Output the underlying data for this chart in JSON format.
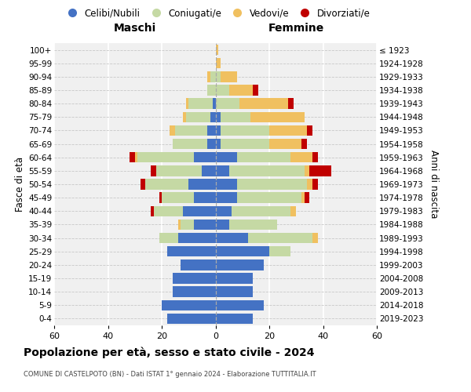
{
  "age_groups": [
    "0-4",
    "5-9",
    "10-14",
    "15-19",
    "20-24",
    "25-29",
    "30-34",
    "35-39",
    "40-44",
    "45-49",
    "50-54",
    "55-59",
    "60-64",
    "65-69",
    "70-74",
    "75-79",
    "80-84",
    "85-89",
    "90-94",
    "95-99",
    "100+"
  ],
  "birth_years": [
    "2019-2023",
    "2014-2018",
    "2009-2013",
    "2004-2008",
    "1999-2003",
    "1994-1998",
    "1989-1993",
    "1984-1988",
    "1979-1983",
    "1974-1978",
    "1969-1973",
    "1964-1968",
    "1959-1963",
    "1954-1958",
    "1949-1953",
    "1944-1948",
    "1939-1943",
    "1934-1938",
    "1929-1933",
    "1924-1928",
    "≤ 1923"
  ],
  "maschi_celibi": [
    18,
    20,
    16,
    16,
    13,
    18,
    14,
    8,
    12,
    8,
    10,
    5,
    8,
    3,
    3,
    2,
    1,
    0,
    0,
    0,
    0
  ],
  "maschi_coniugati": [
    0,
    0,
    0,
    0,
    0,
    0,
    7,
    5,
    11,
    12,
    16,
    17,
    21,
    13,
    12,
    9,
    9,
    3,
    2,
    0,
    0
  ],
  "maschi_vedovi": [
    0,
    0,
    0,
    0,
    0,
    0,
    0,
    1,
    0,
    0,
    0,
    0,
    1,
    0,
    2,
    1,
    1,
    0,
    1,
    0,
    0
  ],
  "maschi_divorziati": [
    0,
    0,
    0,
    0,
    0,
    0,
    0,
    0,
    1,
    1,
    2,
    2,
    2,
    0,
    0,
    0,
    0,
    0,
    0,
    0,
    0
  ],
  "femmine_nubili": [
    14,
    18,
    14,
    14,
    18,
    20,
    12,
    5,
    6,
    8,
    8,
    5,
    8,
    2,
    2,
    2,
    0,
    0,
    0,
    0,
    0
  ],
  "femmine_coniugate": [
    0,
    0,
    0,
    0,
    0,
    8,
    24,
    18,
    22,
    24,
    26,
    28,
    20,
    18,
    18,
    11,
    9,
    5,
    2,
    0,
    0
  ],
  "femmine_vedove": [
    0,
    0,
    0,
    0,
    0,
    0,
    2,
    0,
    2,
    1,
    2,
    2,
    8,
    12,
    14,
    20,
    18,
    9,
    6,
    2,
    1
  ],
  "femmine_divorziate": [
    0,
    0,
    0,
    0,
    0,
    0,
    0,
    0,
    0,
    2,
    2,
    8,
    2,
    2,
    2,
    0,
    2,
    2,
    0,
    0,
    0
  ],
  "color_celibi": "#4472C4",
  "color_coniugati": "#C5D9A4",
  "color_vedovi": "#F0C060",
  "color_divorziati": "#C00000",
  "xlim": 60,
  "title": "Popolazione per età, sesso e stato civile - 2024",
  "subtitle": "COMUNE DI CASTELPOTO (BN) - Dati ISTAT 1° gennaio 2024 - Elaborazione TUTTITALIA.IT",
  "ylabel_left": "Fasce di età",
  "ylabel_right": "Anni di nascita",
  "label_maschi": "Maschi",
  "label_femmine": "Femmine",
  "legend_labels": [
    "Celibi/Nubili",
    "Coniugati/e",
    "Vedovi/e",
    "Divorziati/e"
  ],
  "bg_color": "#f0f0f0"
}
